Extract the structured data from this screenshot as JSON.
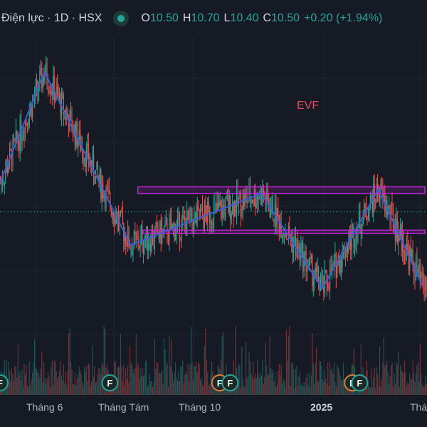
{
  "header": {
    "symbol": "Điện lực · 1D · HSX",
    "open_label": "O",
    "open": "10.50",
    "high_label": "H",
    "high": "10.70",
    "low_label": "L",
    "low": "10.40",
    "close_label": "C",
    "close": "10.50",
    "change": "+0.20 (+1.94%)"
  },
  "annotation": "EVF",
  "event_marker": "F",
  "x_axis_labels": [
    "Tháng 6",
    "Tháng Tám",
    "Tháng 10",
    "2025",
    "Tháng"
  ],
  "colors": {
    "background": "#161a25",
    "up": "#26a69a",
    "down": "#ef5350",
    "zigzag": "#3f5bd8",
    "zone": "#c026d3",
    "annotation": "#e04b5f"
  },
  "chart_data": {
    "type": "candlestick",
    "price_range": [
      8.3,
      12.6
    ],
    "current_price": 10.5,
    "zigzag_points": [
      {
        "day": 0,
        "price": 10.85
      },
      {
        "day": 43,
        "price": 12.18
      },
      {
        "day": 126,
        "price": 10.1
      },
      {
        "day": 252,
        "price": 10.72
      },
      {
        "day": 311,
        "price": 9.58
      },
      {
        "day": 365,
        "price": 10.77
      },
      {
        "day": 408,
        "price": 9.6
      }
    ],
    "resistance_zone": {
      "day_start": 133,
      "day_end": 410,
      "price_low": 10.72,
      "price_high": 10.8
    },
    "support_zone": {
      "day_start": 138,
      "day_end": 410,
      "price_low": 10.24,
      "price_high": 10.28
    },
    "event_days": [
      0,
      106,
      212,
      222,
      340,
      347
    ]
  }
}
